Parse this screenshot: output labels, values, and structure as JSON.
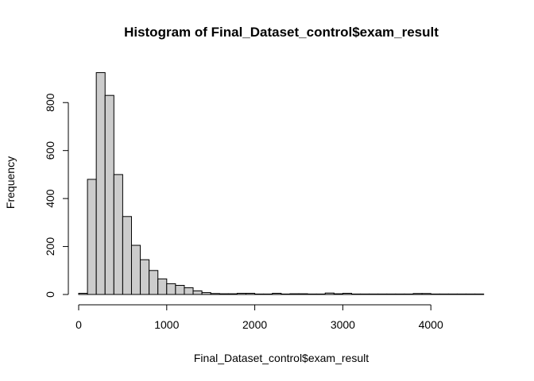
{
  "chart_data": {
    "type": "bar",
    "title": "Histogram of Final_Dataset_control$exam_result",
    "xlabel": "Final_Dataset_control$exam_result",
    "ylabel": "Frequency",
    "xlim": [
      0,
      4600
    ],
    "ylim": [
      0,
      930
    ],
    "x_ticks": [
      "0",
      "1000",
      "2000",
      "3000",
      "4000"
    ],
    "x_tick_values": [
      0,
      1000,
      2000,
      3000,
      4000
    ],
    "y_ticks": [
      "0",
      "200",
      "400",
      "600",
      "800"
    ],
    "y_tick_values": [
      0,
      200,
      400,
      600,
      800
    ],
    "bin_width": 100,
    "bin_starts": [
      0,
      100,
      200,
      300,
      400,
      500,
      600,
      700,
      800,
      900,
      1000,
      1100,
      1200,
      1300,
      1400,
      1500,
      1600,
      1700,
      1800,
      1900,
      2000,
      2100,
      2200,
      2300,
      2400,
      2500,
      2600,
      2700,
      2800,
      2900,
      3000,
      3100,
      3200,
      3300,
      3400,
      3500,
      3600,
      3700,
      3800,
      3900,
      4000,
      4100,
      4200,
      4300,
      4400,
      4500
    ],
    "values": [
      5,
      480,
      925,
      830,
      500,
      325,
      205,
      145,
      100,
      65,
      45,
      38,
      28,
      15,
      8,
      4,
      3,
      3,
      5,
      5,
      2,
      2,
      5,
      2,
      3,
      3,
      2,
      2,
      6,
      3,
      5,
      2,
      2,
      2,
      2,
      2,
      2,
      2,
      4,
      4,
      2,
      2,
      2,
      2,
      2,
      2
    ],
    "bar_color": "#cccccc",
    "grid": false
  }
}
